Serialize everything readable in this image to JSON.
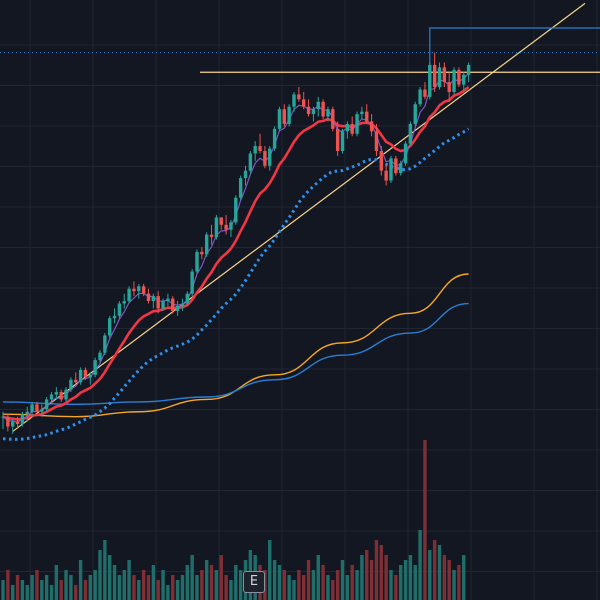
{
  "chart_data": {
    "type": "candlestick",
    "grid": true,
    "colors": {
      "background": "#131722",
      "grid": "#222633",
      "up": "#26a69a",
      "down": "#ef5350",
      "ema_fast": "#7e57c2",
      "ema_mid": "#f23645",
      "ema_slow_dotted": "#2f8fea",
      "ma_200": "#2a7fd4",
      "ma_orange": "#f5a623",
      "trendline": "#f7d58b",
      "resistance": "#f7d58b",
      "high_marker": "#2a7fd4",
      "last_price_line": "#2a7fd4",
      "volume_up": "#1f6e6a",
      "volume_down": "#7d2f35"
    },
    "ylim": [
      0,
      100
    ],
    "candles": [
      [
        21,
        22,
        18.5,
        21
      ],
      [
        21,
        21.5,
        18,
        19
      ],
      [
        19,
        20.5,
        17.5,
        20
      ],
      [
        20,
        21,
        18.5,
        19.5
      ],
      [
        19.5,
        22,
        19,
        21.5
      ],
      [
        21.5,
        23,
        20,
        22
      ],
      [
        22,
        24,
        21,
        23.5
      ],
      [
        23.5,
        24,
        21.5,
        22
      ],
      [
        22,
        23.5,
        21,
        22.5
      ],
      [
        22.5,
        25,
        22,
        24.5
      ],
      [
        24.5,
        26,
        23.5,
        25.5
      ],
      [
        25.5,
        27,
        24.5,
        26
      ],
      [
        26,
        26.5,
        24,
        24.5
      ],
      [
        24.5,
        27,
        24,
        26.5
      ],
      [
        26.5,
        29,
        26,
        28.5
      ],
      [
        28.5,
        30,
        27.5,
        28
      ],
      [
        28,
        31,
        27.5,
        30.5
      ],
      [
        30.5,
        31,
        28.5,
        29
      ],
      [
        29,
        30,
        27.5,
        29.5
      ],
      [
        29.5,
        33,
        29,
        32.5
      ],
      [
        32.5,
        34.5,
        32,
        34
      ],
      [
        34,
        38,
        33.5,
        37.5
      ],
      [
        37.5,
        41.5,
        37,
        41
      ],
      [
        41,
        43,
        40,
        41.5
      ],
      [
        41.5,
        44.5,
        41,
        44
      ],
      [
        44,
        46,
        43,
        44.5
      ],
      [
        44.5,
        47.5,
        44,
        47
      ],
      [
        47,
        48.5,
        45.5,
        46.5
      ],
      [
        46.5,
        48,
        45,
        47.5
      ],
      [
        47.5,
        48,
        45.5,
        46
      ],
      [
        46,
        47,
        44,
        44.5
      ],
      [
        44.5,
        46,
        43,
        45.5
      ],
      [
        45.5,
        46.5,
        42,
        43
      ],
      [
        43,
        45,
        42.5,
        44.5
      ],
      [
        44.5,
        46,
        43.5,
        45
      ],
      [
        45,
        45.5,
        42,
        42.5
      ],
      [
        42.5,
        44.5,
        41.5,
        43.5
      ],
      [
        43.5,
        45,
        42.5,
        44
      ],
      [
        44,
        46.5,
        43.5,
        46
      ],
      [
        46,
        51,
        45.5,
        50.5
      ],
      [
        50.5,
        55,
        50,
        54.5
      ],
      [
        54.5,
        55.5,
        53,
        54
      ],
      [
        54,
        58.5,
        53.5,
        58
      ],
      [
        58,
        60,
        56,
        57.5
      ],
      [
        57.5,
        62,
        57,
        61.5
      ],
      [
        61.5,
        61.5,
        59,
        60
      ],
      [
        60,
        62,
        58,
        59
      ],
      [
        59,
        61,
        57.5,
        60.5
      ],
      [
        60.5,
        66,
        60,
        65.5
      ],
      [
        65.5,
        70,
        65,
        69.5
      ],
      [
        69.5,
        72,
        68,
        71
      ],
      [
        71,
        75,
        70.5,
        74.5
      ],
      [
        74.5,
        77,
        73,
        76
      ],
      [
        76,
        78.5,
        74.5,
        75
      ],
      [
        75,
        76,
        71.5,
        72
      ],
      [
        72,
        76,
        71,
        75.5
      ],
      [
        75.5,
        80,
        75,
        79.5
      ],
      [
        79.5,
        84,
        79,
        83.5
      ],
      [
        83.5,
        84.5,
        80,
        80.5
      ],
      [
        80.5,
        84.5,
        80,
        84
      ],
      [
        84,
        87,
        83,
        86.5
      ],
      [
        86.5,
        88,
        85,
        85.5
      ],
      [
        85.5,
        87,
        83.5,
        84
      ],
      [
        84,
        85.5,
        82,
        82.5
      ],
      [
        82.5,
        84,
        81,
        83.5
      ],
      [
        83.5,
        86,
        82,
        85
      ],
      [
        85,
        85.5,
        81.5,
        82
      ],
      [
        82,
        84,
        81,
        83.5
      ],
      [
        83.5,
        84,
        79,
        79.5
      ],
      [
        79.5,
        81,
        74,
        75
      ],
      [
        75,
        79.5,
        74.5,
        79
      ],
      [
        79,
        81,
        77.5,
        80.5
      ],
      [
        80.5,
        82,
        78,
        78.5
      ],
      [
        78.5,
        83,
        78,
        82.5
      ],
      [
        82.5,
        84,
        81.5,
        83
      ],
      [
        83,
        84.5,
        80.5,
        81
      ],
      [
        81,
        82.5,
        78,
        79
      ],
      [
        79,
        80.5,
        74,
        75
      ],
      [
        75,
        76,
        70,
        71
      ],
      [
        71,
        72,
        68,
        69
      ],
      [
        69,
        74,
        68.5,
        73.5
      ],
      [
        73.5,
        74,
        70,
        70.5
      ],
      [
        70.5,
        73,
        70,
        72.5
      ],
      [
        72.5,
        77,
        72,
        76.5
      ],
      [
        76.5,
        81,
        76,
        80.5
      ],
      [
        80.5,
        85,
        80,
        84.5
      ],
      [
        84.5,
        88,
        84,
        87.5
      ],
      [
        87.5,
        89,
        85.5,
        86
      ],
      [
        86,
        93,
        85.5,
        92.5
      ],
      [
        92.5,
        95,
        87,
        88
      ],
      [
        88,
        93,
        87.5,
        92
      ],
      [
        92,
        93,
        88,
        89
      ],
      [
        89,
        91,
        85,
        87
      ],
      [
        87,
        92,
        86.5,
        91.5
      ],
      [
        91.5,
        92,
        88,
        88.5
      ],
      [
        88.5,
        91,
        87,
        90.5
      ],
      [
        90.5,
        93,
        89,
        92.5
      ]
    ],
    "volumes": [
      4,
      6,
      3,
      5,
      4,
      3,
      5,
      6,
      4,
      5,
      3,
      7,
      4,
      6,
      5,
      3,
      8,
      4,
      5,
      6,
      10,
      12,
      9,
      7,
      5,
      6,
      8,
      5,
      4,
      6,
      5,
      7,
      4,
      6,
      3,
      5,
      4,
      5,
      7,
      9,
      5,
      6,
      8,
      7,
      6,
      9,
      5,
      4,
      7,
      6,
      8,
      10,
      9,
      7,
      6,
      12,
      8,
      7,
      6,
      5,
      4,
      6,
      5,
      8,
      6,
      9,
      7,
      5,
      4,
      6,
      8,
      5,
      7,
      6,
      9,
      10,
      8,
      12,
      11,
      9,
      6,
      5,
      7,
      8,
      9,
      7,
      14,
      32,
      10,
      12,
      11,
      9,
      8,
      6,
      7,
      9
    ],
    "ma_orange": [
      [
        0,
        21.5
      ],
      [
        15,
        21
      ],
      [
        28,
        22
      ],
      [
        42,
        24.5
      ],
      [
        56,
        29.5
      ],
      [
        70,
        36
      ],
      [
        84,
        42
      ],
      [
        96,
        50
      ]
    ],
    "ma_200": [
      [
        0,
        24
      ],
      [
        15,
        23.5
      ],
      [
        28,
        24
      ],
      [
        42,
        25
      ],
      [
        56,
        28.5
      ],
      [
        70,
        33.5
      ],
      [
        84,
        38
      ],
      [
        96,
        44
      ]
    ],
    "trendline": [
      [
        2,
        18
      ],
      [
        120,
        105
      ]
    ],
    "resistance_level": 91,
    "high_level": 100,
    "dotted_level": 95
  }
}
